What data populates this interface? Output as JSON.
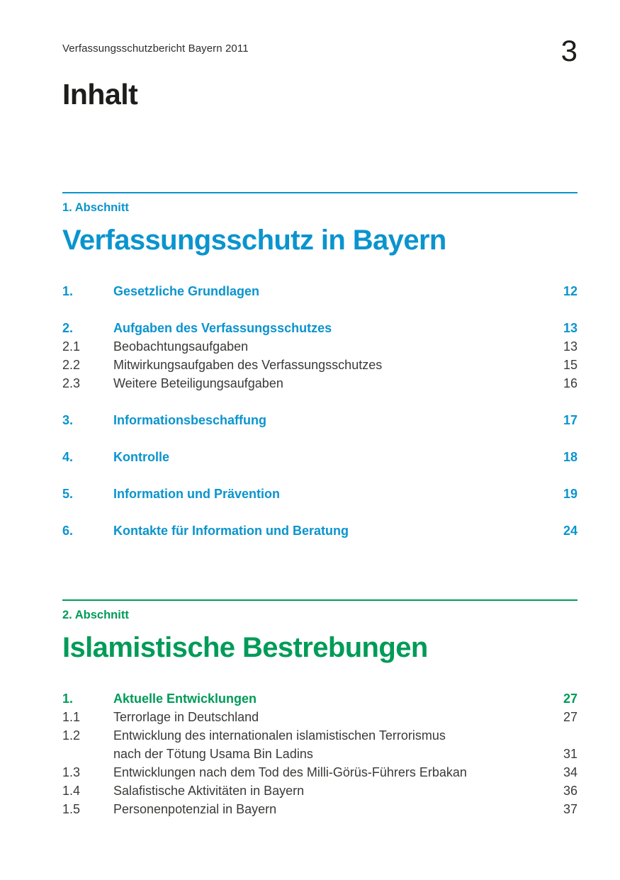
{
  "document": {
    "header": "Verfassungsschutzbericht Bayern 2011",
    "page_number": "3",
    "title": "Inhalt"
  },
  "colors": {
    "section1_accent": "#0a94ce",
    "section2_accent": "#009b58",
    "body_text": "#3a3a38",
    "heading_text": "#1d1d1b"
  },
  "sections": [
    {
      "label": "1. Abschnitt",
      "title": "Verfassungsschutz in Bayern",
      "accent_color": "#0a94ce",
      "entries": [
        {
          "num": "1.",
          "lines": [
            "Gesetzliche Grundlagen"
          ],
          "page": "12",
          "bold": true,
          "gap_before": false
        },
        {
          "num": "2.",
          "lines": [
            "Aufgaben des Verfassungsschutzes"
          ],
          "page": "13",
          "bold": true,
          "gap_before": true
        },
        {
          "num": "2.1",
          "lines": [
            "Beobachtungsaufgaben"
          ],
          "page": "13",
          "bold": false,
          "gap_before": false
        },
        {
          "num": "2.2",
          "lines": [
            "Mitwirkungsaufgaben des Verfassungsschutzes"
          ],
          "page": "15",
          "bold": false,
          "gap_before": false
        },
        {
          "num": "2.3",
          "lines": [
            "Weitere Beteiligungsaufgaben"
          ],
          "page": "16",
          "bold": false,
          "gap_before": false
        },
        {
          "num": "3.",
          "lines": [
            "Informationsbeschaffung"
          ],
          "page": "17",
          "bold": true,
          "gap_before": true
        },
        {
          "num": "4.",
          "lines": [
            "Kontrolle"
          ],
          "page": "18",
          "bold": true,
          "gap_before": true
        },
        {
          "num": "5.",
          "lines": [
            "Information und Prävention"
          ],
          "page": "19",
          "bold": true,
          "gap_before": true
        },
        {
          "num": "6.",
          "lines": [
            "Kontakte für Information und Beratung"
          ],
          "page": "24",
          "bold": true,
          "gap_before": true
        }
      ]
    },
    {
      "label": "2. Abschnitt",
      "title": "Islamistische Bestrebungen",
      "accent_color": "#009b58",
      "entries": [
        {
          "num": "1.",
          "lines": [
            "Aktuelle Entwicklungen"
          ],
          "page": "27",
          "bold": true,
          "gap_before": false
        },
        {
          "num": "1.1",
          "lines": [
            "Terrorlage in Deutschland"
          ],
          "page": "27",
          "bold": false,
          "gap_before": false
        },
        {
          "num": "1.2",
          "lines": [
            "Entwicklung des internationalen islamistischen Terrorismus",
            "nach der Tötung Usama Bin Ladins"
          ],
          "page": "31",
          "bold": false,
          "gap_before": false
        },
        {
          "num": "1.3",
          "lines": [
            "Entwicklungen nach dem Tod des Milli-Görüs-Führers Erbakan"
          ],
          "page": "34",
          "bold": false,
          "gap_before": false
        },
        {
          "num": "1.4",
          "lines": [
            "Salafistische Aktivitäten in Bayern"
          ],
          "page": "36",
          "bold": false,
          "gap_before": false
        },
        {
          "num": "1.5",
          "lines": [
            "Personenpotenzial in Bayern"
          ],
          "page": "37",
          "bold": false,
          "gap_before": false
        }
      ]
    }
  ]
}
